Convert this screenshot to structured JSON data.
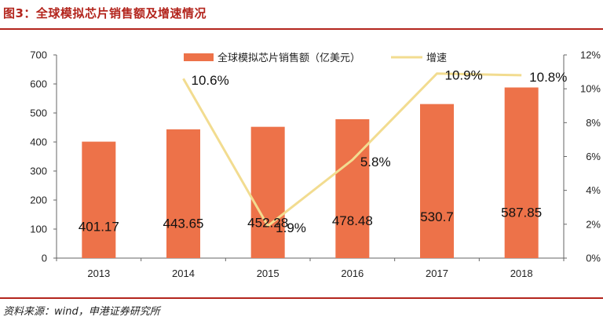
{
  "page": {
    "figure_title": "图3：全球模拟芯片销售额及增速情况",
    "source": "资料来源：wind，申港证券研究所"
  },
  "colors": {
    "bar": "#ed7249",
    "line": "#f2dc90",
    "accent": "#b3251d"
  },
  "chart_data": {
    "type": "bar",
    "categories": [
      "2013",
      "2014",
      "2015",
      "2016",
      "2017",
      "2018"
    ],
    "series": [
      {
        "name": "全球模拟芯片销售额（亿美元）",
        "type": "bar",
        "axis": "left",
        "values": [
          401.17,
          443.65,
          452.28,
          478.48,
          530.7,
          587.85
        ],
        "labels": [
          "401.17",
          "443.65",
          "452.28",
          "478.48",
          "530.7",
          "587.85"
        ]
      },
      {
        "name": "增速",
        "type": "line",
        "axis": "right",
        "values": [
          null,
          10.6,
          1.9,
          5.8,
          10.9,
          10.8
        ],
        "labels": [
          "",
          "10.6%",
          "1.9%",
          "5.8%",
          "10.9%",
          "10.8%"
        ]
      }
    ],
    "y_left": {
      "ylim": [
        0,
        700
      ],
      "ticks": [
        "0",
        "100",
        "200",
        "300",
        "400",
        "500",
        "600",
        "700"
      ]
    },
    "y_right": {
      "ylim": [
        0,
        12
      ],
      "ticks": [
        "0%",
        "2%",
        "4%",
        "6%",
        "8%",
        "10%",
        "12%"
      ]
    },
    "legend": "top-center",
    "grid": false
  }
}
